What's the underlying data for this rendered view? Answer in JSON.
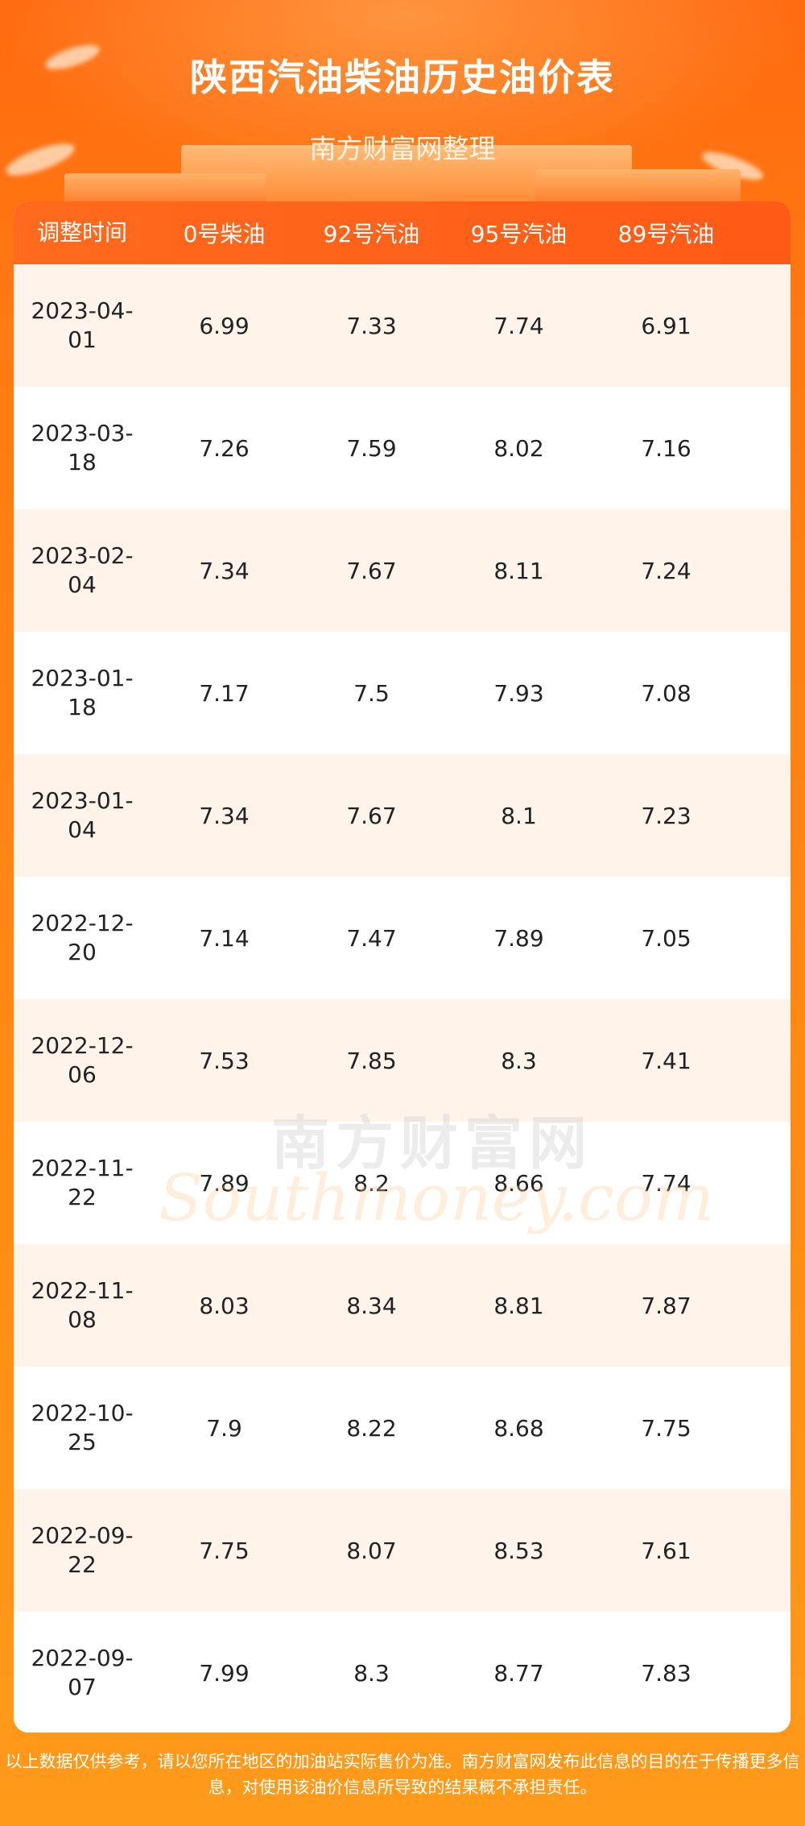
{
  "header": {
    "title": "陕西汽油柴油历史油价表",
    "subtitle": "南方财富网整理"
  },
  "table": {
    "columns": [
      "调整时间",
      "0号柴油",
      "92号汽油",
      "95号汽油",
      "89号汽油"
    ],
    "rows": [
      {
        "date_line1": "2023-04-",
        "date_line2": "01",
        "diesel0": "6.99",
        "g92": "7.33",
        "g95": "7.74",
        "g89": "6.91"
      },
      {
        "date_line1": "2023-03-",
        "date_line2": "18",
        "diesel0": "7.26",
        "g92": "7.59",
        "g95": "8.02",
        "g89": "7.16"
      },
      {
        "date_line1": "2023-02-",
        "date_line2": "04",
        "diesel0": "7.34",
        "g92": "7.67",
        "g95": "8.11",
        "g89": "7.24"
      },
      {
        "date_line1": "2023-01-",
        "date_line2": "18",
        "diesel0": "7.17",
        "g92": "7.5",
        "g95": "7.93",
        "g89": "7.08"
      },
      {
        "date_line1": "2023-01-",
        "date_line2": "04",
        "diesel0": "7.34",
        "g92": "7.67",
        "g95": "8.1",
        "g89": "7.23"
      },
      {
        "date_line1": "2022-12-",
        "date_line2": "20",
        "diesel0": "7.14",
        "g92": "7.47",
        "g95": "7.89",
        "g89": "7.05"
      },
      {
        "date_line1": "2022-12-",
        "date_line2": "06",
        "diesel0": "7.53",
        "g92": "7.85",
        "g95": "8.3",
        "g89": "7.41"
      },
      {
        "date_line1": "2022-11-",
        "date_line2": "22",
        "diesel0": "7.89",
        "g92": "8.2",
        "g95": "8.66",
        "g89": "7.74"
      },
      {
        "date_line1": "2022-11-",
        "date_line2": "08",
        "diesel0": "8.03",
        "g92": "8.34",
        "g95": "8.81",
        "g89": "7.87"
      },
      {
        "date_line1": "2022-10-",
        "date_line2": "25",
        "diesel0": "7.9",
        "g92": "8.22",
        "g95": "8.68",
        "g89": "7.75"
      },
      {
        "date_line1": "2022-09-",
        "date_line2": "22",
        "diesel0": "7.75",
        "g92": "8.07",
        "g95": "8.53",
        "g89": "7.61"
      },
      {
        "date_line1": "2022-09-",
        "date_line2": "07",
        "diesel0": "7.99",
        "g92": "8.3",
        "g95": "8.77",
        "g89": "7.83"
      }
    ]
  },
  "watermark": {
    "cn": "南方财富网",
    "en": "Southmoney.com"
  },
  "footer": {
    "disclaimer": "以上数据仅供参考，请以您所在地区的加油站实际售价为准。南方财富网发布此信息的目的在于传播更多信息，对使用该油价信息所导致的结果概不承担责任。"
  },
  "colors": {
    "brand_orange": "#ff6a1e",
    "row_tint": "#fff3ea"
  }
}
